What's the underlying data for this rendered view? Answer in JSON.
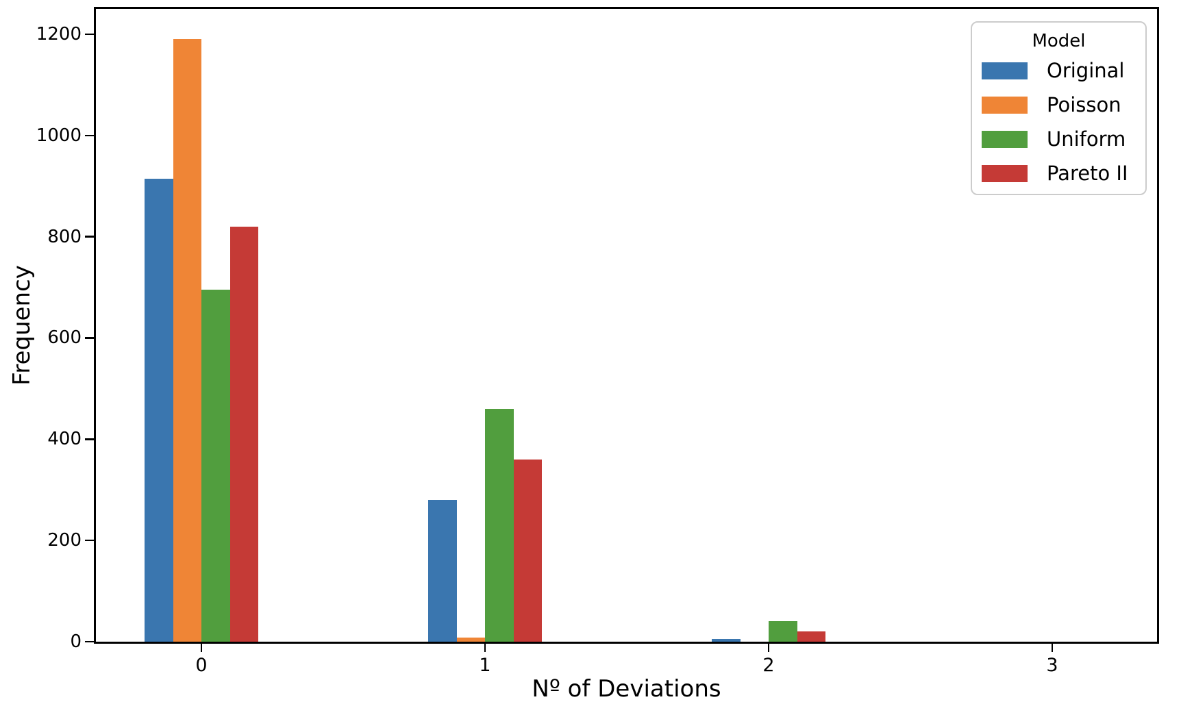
{
  "chart_data": {
    "type": "bar",
    "title": "",
    "xlabel": "Nº of Deviations",
    "ylabel": "Frequency",
    "categories": [
      "0",
      "1",
      "2",
      "3"
    ],
    "series": [
      {
        "name": "Original",
        "color": "#3A76AF",
        "values": [
          915,
          280,
          5,
          0
        ]
      },
      {
        "name": "Poisson",
        "color": "#EF8536",
        "values": [
          1190,
          8,
          0,
          0
        ]
      },
      {
        "name": "Uniform",
        "color": "#519E3E",
        "values": [
          695,
          460,
          40,
          0
        ]
      },
      {
        "name": "Pareto II",
        "color": "#C53A36",
        "values": [
          820,
          360,
          20,
          0
        ]
      }
    ],
    "yticks": [
      0,
      200,
      400,
      600,
      800,
      1000,
      1200
    ],
    "ylim": [
      0,
      1250
    ],
    "grid": false,
    "legend": {
      "title": "Model",
      "position": "upper right"
    },
    "colors": {
      "axis": "#000000",
      "legend_border": "#cccccc",
      "background": "#ffffff"
    }
  }
}
